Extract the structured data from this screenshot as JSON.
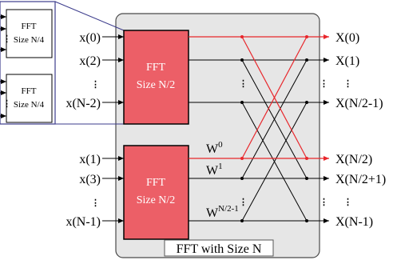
{
  "sub_blocks": [
    {
      "line1": "FFT",
      "line2": "Size N/4"
    },
    {
      "line1": "FFT",
      "line2": "Size N/4"
    }
  ],
  "main_blocks": [
    {
      "line1": "FFT",
      "line2": "Size N/2"
    },
    {
      "line1": "FFT",
      "line2": "Size N/2"
    }
  ],
  "inputs_top": [
    "x(0)",
    "x(2)",
    "x(N-2)"
  ],
  "inputs_bottom": [
    "x(1)",
    "x(3)",
    "x(N-1)"
  ],
  "outputs": [
    "X(0)",
    "X(1)",
    "X(N/2-1)",
    "X(N/2)",
    "X(N/2+1)",
    "X(N-1)"
  ],
  "twiddles": [
    "W^0",
    "W^1",
    "W^N/2-1"
  ],
  "container_label": "FFT with Size N",
  "colors": {
    "block_fill": "#ec5f67",
    "container_fill": "#e6e6e6",
    "highlight": "#e8262b",
    "wire": "#000000",
    "sub_block_border": "#3c3c8c"
  }
}
